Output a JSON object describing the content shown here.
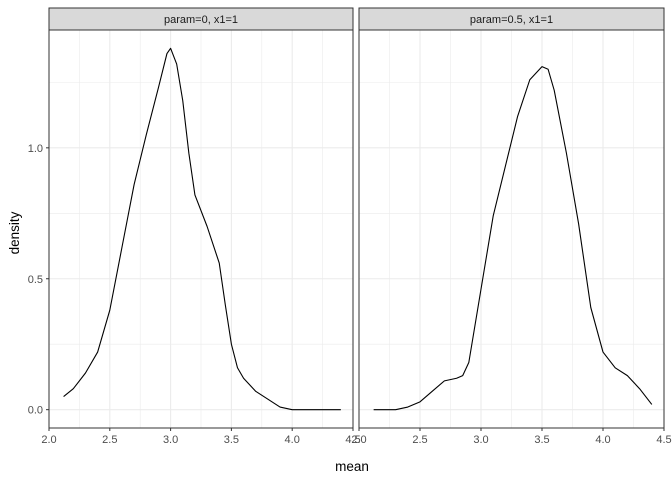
{
  "chart_data": {
    "type": "line",
    "xlabel": "mean",
    "ylabel": "density",
    "grid": true,
    "colors": {
      "line": "#000000",
      "strip_bg": "#d9d9d9",
      "grid": "#ebebeb",
      "panel_border": "#333333"
    },
    "panels": [
      {
        "strip": "param=0, x1=1",
        "xlim": [
          2.0,
          4.5
        ],
        "ylim": [
          -0.07,
          1.45
        ],
        "x_ticks": [
          "2.0",
          "2.5",
          "3.0",
          "3.5",
          "4.0",
          "4.5"
        ],
        "y_ticks": [
          "0.0",
          "0.5",
          "1.0"
        ],
        "x": [
          2.12,
          2.2,
          2.3,
          2.4,
          2.5,
          2.6,
          2.7,
          2.8,
          2.9,
          2.97,
          3.0,
          3.05,
          3.1,
          3.15,
          3.2,
          3.3,
          3.4,
          3.45,
          3.5,
          3.55,
          3.6,
          3.7,
          3.8,
          3.9,
          4.0,
          4.1,
          4.2,
          4.3,
          4.4
        ],
        "y": [
          0.05,
          0.08,
          0.14,
          0.22,
          0.38,
          0.62,
          0.86,
          1.05,
          1.23,
          1.36,
          1.38,
          1.32,
          1.18,
          0.98,
          0.82,
          0.7,
          0.56,
          0.4,
          0.25,
          0.16,
          0.12,
          0.07,
          0.04,
          0.01,
          0.0,
          0.0,
          0.0,
          0.0,
          0.0
        ]
      },
      {
        "strip": "param=0.5, x1=1",
        "xlim": [
          2.0,
          4.5
        ],
        "ylim": [
          -0.07,
          1.45
        ],
        "x_ticks": [
          "2.0",
          "2.5",
          "3.0",
          "3.5",
          "4.0",
          "4.5"
        ],
        "y_ticks": [
          "0.0",
          "0.5",
          "1.0"
        ],
        "x": [
          2.12,
          2.2,
          2.3,
          2.4,
          2.5,
          2.6,
          2.7,
          2.8,
          2.85,
          2.9,
          3.0,
          3.1,
          3.2,
          3.3,
          3.4,
          3.5,
          3.55,
          3.6,
          3.7,
          3.8,
          3.9,
          4.0,
          4.1,
          4.2,
          4.3,
          4.4
        ],
        "y": [
          0.0,
          0.0,
          0.0,
          0.01,
          0.03,
          0.07,
          0.11,
          0.12,
          0.13,
          0.18,
          0.46,
          0.74,
          0.93,
          1.12,
          1.26,
          1.31,
          1.3,
          1.22,
          0.98,
          0.71,
          0.39,
          0.22,
          0.16,
          0.13,
          0.08,
          0.02
        ]
      }
    ]
  }
}
